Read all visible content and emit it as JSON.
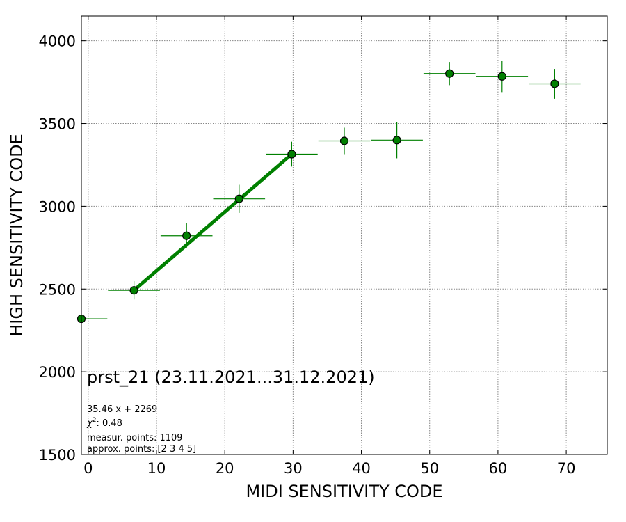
{
  "chart_data": {
    "type": "scatter",
    "xlabel": "MIDI SENSITIVITY CODE",
    "ylabel": "HIGH SENSITIVITY CODE",
    "xlim": [
      -1,
      76
    ],
    "ylim": [
      1500,
      4150
    ],
    "xticks": [
      0,
      10,
      20,
      30,
      40,
      50,
      60,
      70
    ],
    "yticks": [
      1500,
      2000,
      2500,
      3000,
      3500,
      4000
    ],
    "grid": true,
    "series": [
      {
        "color": "#008000",
        "points": [
          {
            "x": -1,
            "y": 2320,
            "xerr": 3.8,
            "yerr": 0
          },
          {
            "x": 6.7,
            "y": 2492,
            "xerr": 3.8,
            "yerr": 55
          },
          {
            "x": 14.4,
            "y": 2822,
            "xerr": 3.8,
            "yerr": 75
          },
          {
            "x": 22.1,
            "y": 3045,
            "xerr": 3.8,
            "yerr": 85
          },
          {
            "x": 29.8,
            "y": 3315,
            "xerr": 3.8,
            "yerr": 75
          },
          {
            "x": 37.5,
            "y": 3395,
            "xerr": 3.8,
            "yerr": 80
          },
          {
            "x": 45.2,
            "y": 3400,
            "xerr": 3.8,
            "yerr": 110
          },
          {
            "x": 52.9,
            "y": 3802,
            "xerr": 3.8,
            "yerr": 70
          },
          {
            "x": 60.6,
            "y": 3785,
            "xerr": 3.8,
            "yerr": 95
          },
          {
            "x": 68.3,
            "y": 3740,
            "xerr": 3.8,
            "yerr": 90
          }
        ]
      }
    ],
    "fit_line": {
      "color": "#008000",
      "x": [
        6.7,
        29.8
      ],
      "y": [
        2492,
        3315
      ]
    },
    "annotations": {
      "title_text": "prst_21 (23.11.2021...31.12.2021)",
      "equation": "35.46 x + 2269",
      "chi2_label": "χ",
      "chi2_exp": "2",
      "chi2_value": ": 0.48",
      "measur": "measur. points: 1109",
      "approx": "approx. points: [2 3 4 5]"
    }
  }
}
